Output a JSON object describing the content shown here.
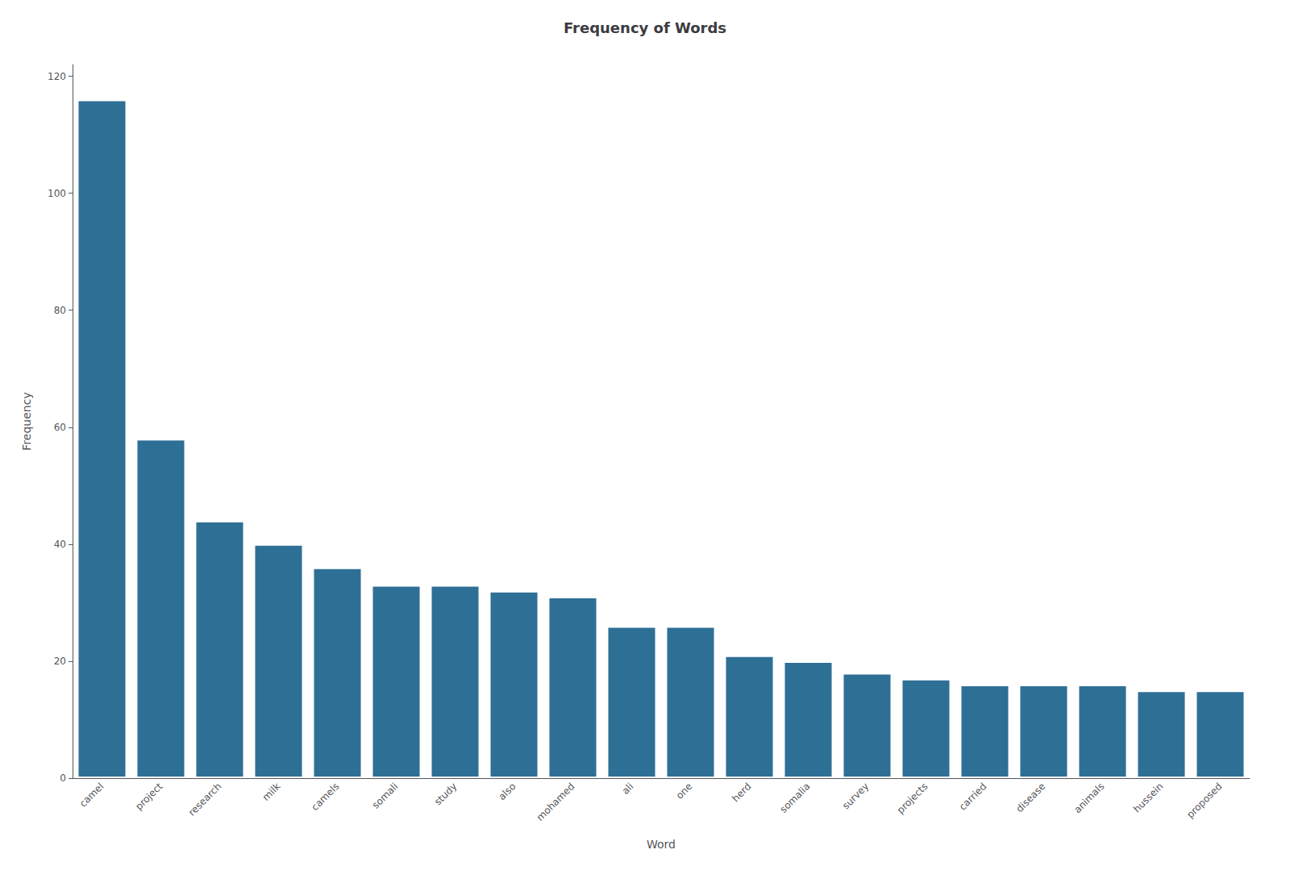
{
  "chart_data": {
    "type": "bar",
    "title": "Frequency of Words",
    "xlabel": "Word",
    "ylabel": "Frequency",
    "categories": [
      "camel",
      "project",
      "research",
      "milk",
      "camels",
      "somali",
      "study",
      "also",
      "mohamed",
      "ali",
      "one",
      "herd",
      "somalia",
      "survey",
      "projects",
      "carried",
      "disease",
      "animals",
      "hussein",
      "proposed"
    ],
    "values": [
      116,
      58,
      44,
      40,
      36,
      33,
      33,
      32,
      31,
      26,
      26,
      21,
      20,
      18,
      17,
      16,
      16,
      16,
      15,
      15
    ],
    "color": "#2e6f96",
    "ylim": [
      0,
      122
    ],
    "yticks": [
      0,
      20,
      40,
      60,
      80,
      100,
      120
    ],
    "grid": false
  }
}
